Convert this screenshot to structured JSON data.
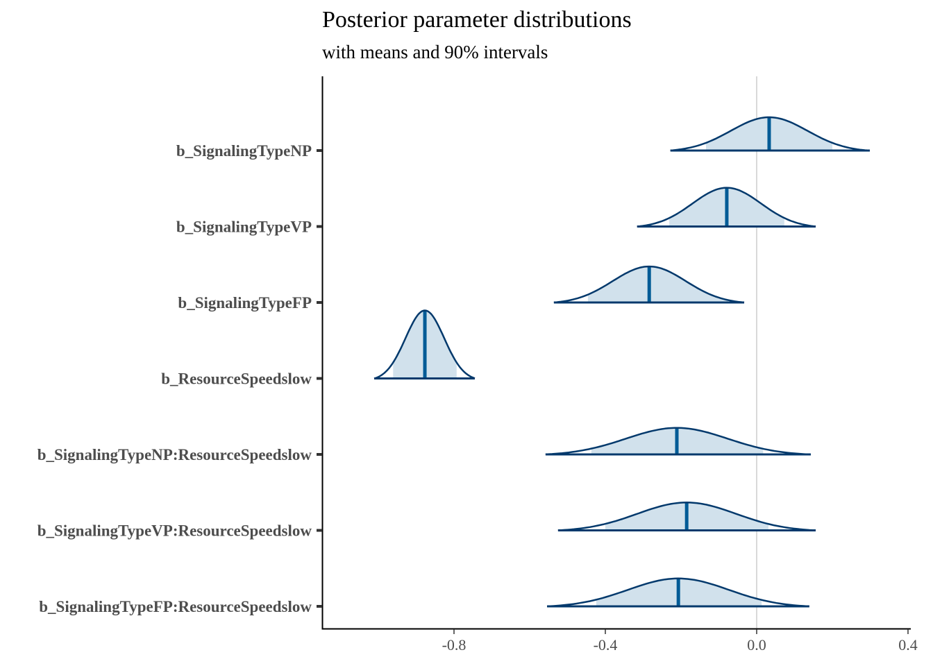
{
  "chart_data": {
    "type": "area",
    "subtype": "ridgeline-density",
    "title": "Posterior parameter distributions",
    "subtitle": "with means and 90% intervals",
    "xlabel": "",
    "ylabel": "",
    "xlim": [
      -1.15,
      0.41
    ],
    "x_ticks": [
      -0.8,
      -0.4,
      0.0,
      0.4
    ],
    "x_tick_labels": [
      "-0.8",
      "-0.4",
      "0.0",
      "0.4"
    ],
    "reference_line": 0.0,
    "grid": false,
    "colors": {
      "line": "#03396c",
      "fill": "#d1e1ec",
      "mean": "#005b96",
      "refline": "#d9d9d9",
      "axis": "#000000",
      "text": "#4d4d4d"
    },
    "series": [
      {
        "name": "b_SignalingTypeNP",
        "mean": 0.033,
        "ci90": [
          -0.134,
          0.2
        ],
        "range": [
          -0.228,
          0.299
        ],
        "rel_height": 0.49
      },
      {
        "name": "b_SignalingTypeVP",
        "mean": -0.079,
        "ci90": [
          -0.231,
          0.073
        ],
        "range": [
          -0.316,
          0.156
        ],
        "rel_height": 0.57
      },
      {
        "name": "b_SignalingTypeFP",
        "mean": -0.284,
        "ci90": [
          -0.446,
          -0.075
        ],
        "range": [
          -0.536,
          -0.033
        ],
        "rel_height": 0.53
      },
      {
        "name": "b_ResourceSpeedslow",
        "mean": -0.877,
        "ci90": [
          -0.961,
          -0.793
        ],
        "range": [
          -1.011,
          -0.745
        ],
        "rel_height": 1.0
      },
      {
        "name": "b_SignalingTypeNP:ResourceSpeedslow",
        "mean": -0.211,
        "ci90": [
          -0.437,
          0.017
        ],
        "range": [
          -0.558,
          0.143
        ],
        "rel_height": 0.39
      },
      {
        "name": "b_SignalingTypeVP:ResourceSpeedslow",
        "mean": -0.185,
        "ci90": [
          -0.4,
          0.031
        ],
        "range": [
          -0.525,
          0.156
        ],
        "rel_height": 0.41
      },
      {
        "name": "b_SignalingTypeFP:ResourceSpeedslow",
        "mean": -0.207,
        "ci90": [
          -0.424,
          0.013
        ],
        "range": [
          -0.554,
          0.139
        ],
        "rel_height": 0.41
      }
    ]
  }
}
